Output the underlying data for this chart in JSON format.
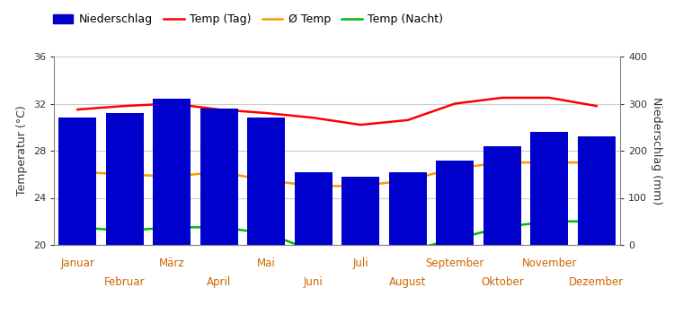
{
  "months": [
    "Januar",
    "Februar",
    "März",
    "April",
    "Mai",
    "Juni",
    "Juli",
    "August",
    "September",
    "Oktober",
    "November",
    "Dezember"
  ],
  "precipitation_mm": [
    270,
    280,
    310,
    290,
    270,
    155,
    145,
    155,
    180,
    210,
    240,
    230
  ],
  "temp_day": [
    31.5,
    31.8,
    32.0,
    31.5,
    31.2,
    30.8,
    30.2,
    30.6,
    32.0,
    32.5,
    32.5,
    31.8
  ],
  "temp_avg": [
    26.2,
    26.0,
    25.8,
    26.2,
    25.5,
    25.0,
    25.0,
    25.5,
    26.5,
    27.0,
    27.0,
    27.0
  ],
  "temp_night": [
    21.5,
    21.2,
    21.5,
    21.5,
    21.0,
    19.5,
    18.8,
    19.5,
    20.5,
    21.5,
    22.0,
    22.0
  ],
  "bar_color": "#0000cc",
  "line_day_color": "#ff0000",
  "line_avg_color": "#ff9900",
  "line_night_color": "#00bb00",
  "ylabel_left": "Temperatur (°C)",
  "ylabel_right": "Niederschlag (mm)",
  "ylim_left": [
    20,
    36
  ],
  "ylim_right": [
    0,
    400
  ],
  "yticks_left": [
    20,
    24,
    28,
    32,
    36
  ],
  "yticks_right": [
    0,
    100,
    200,
    300,
    400
  ],
  "legend_labels": [
    "Niederschlag",
    "Temp (Tag)",
    "Ø Temp",
    "Temp (Nacht)"
  ],
  "background_color": "#ffffff",
  "grid_color": "#cccccc",
  "label_color": "#cc6600"
}
